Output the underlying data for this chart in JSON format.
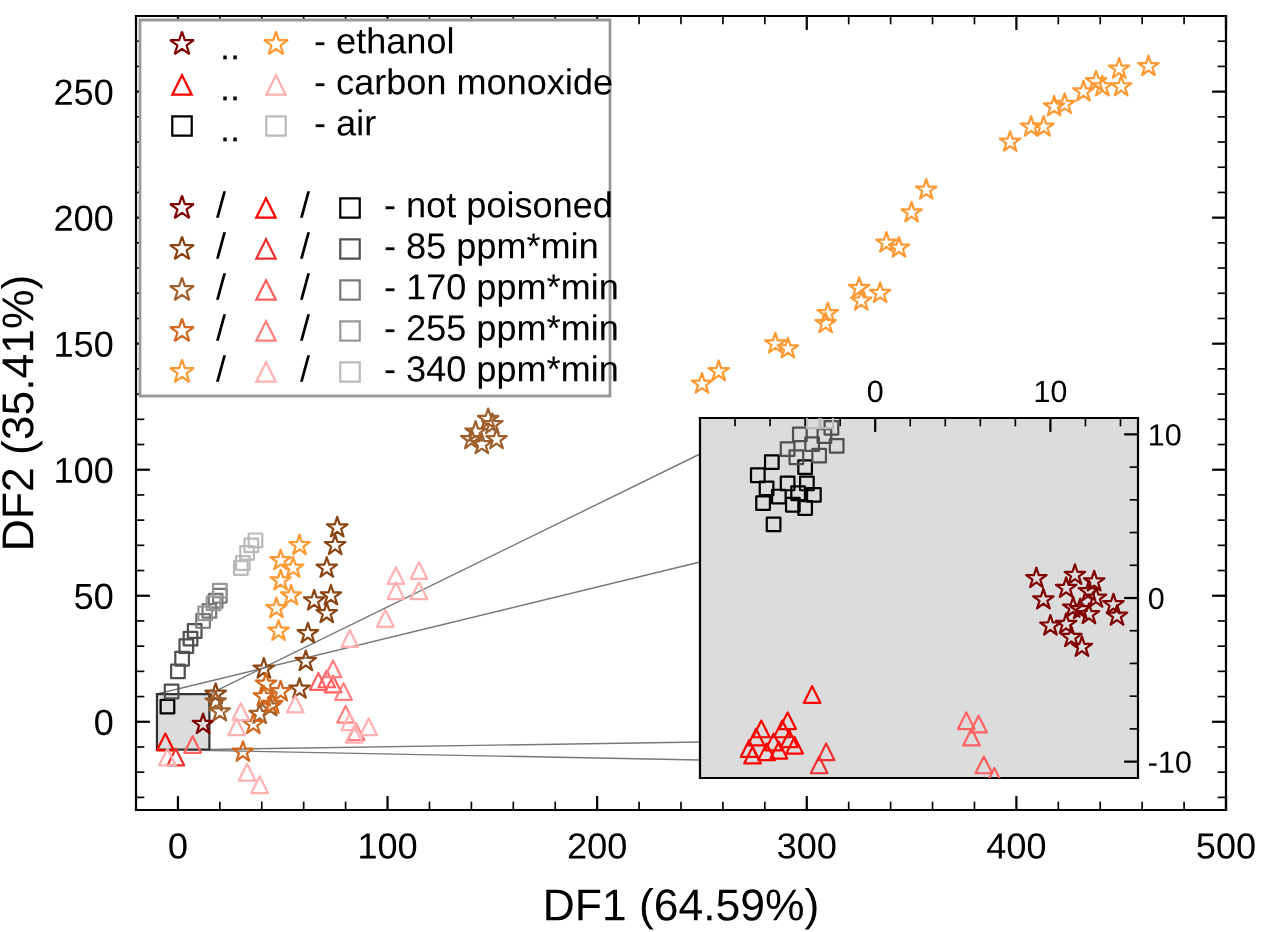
{
  "chart_data": [
    {
      "type": "scatter",
      "xlabel": "DF1 (64.59%)",
      "ylabel": "DF2 (35.41%)",
      "xlim": [
        -20,
        500
      ],
      "ylim": [
        -35,
        280
      ],
      "xticks": [
        0,
        100,
        200,
        300,
        400,
        500
      ],
      "yticks": [
        0,
        50,
        100,
        150,
        200,
        250
      ],
      "annotations": [
        "..",
        "/",
        "- ethanol",
        "- carbon monoxide",
        "- air",
        "- not poisoned",
        "- 85 ppm*min",
        "- 170 ppm*min",
        "- 255 ppm*min",
        "- 340 ppm*min"
      ],
      "series": [
        {
          "color": "#800000",
          "marker": "star",
          "x": [
            12
          ],
          "values": [
            -1
          ]
        },
        {
          "color": "#8b4513",
          "marker": "star",
          "x": [
            76,
            75,
            71,
            65,
            73,
            71,
            62,
            61,
            58,
            41,
            18
          ],
          "values": [
            77,
            70,
            61,
            48,
            50,
            43,
            35,
            24,
            13,
            21,
            11
          ]
        },
        {
          "color": "#a0602d",
          "marker": "star",
          "x": [
            18,
            20,
            39,
            44,
            142,
            150,
            145,
            152,
            140,
            148
          ],
          "values": [
            8,
            4,
            3,
            6,
            115,
            118,
            110,
            112,
            112,
            120
          ]
        },
        {
          "color": "#d2691e",
          "marker": "star",
          "x": [
            42,
            45,
            36,
            31,
            41,
            49
          ],
          "values": [
            15,
            7,
            -1,
            -12,
            10,
            12
          ]
        },
        {
          "color": "#ff9933",
          "marker": "star",
          "x": [
            58,
            49,
            55,
            49,
            54,
            47,
            48,
            250,
            258,
            285,
            291,
            310,
            309,
            325,
            326,
            335,
            338,
            344,
            350,
            357,
            397,
            407,
            413,
            418,
            423,
            432,
            438,
            441,
            449,
            450,
            463
          ],
          "values": [
            70,
            64,
            61,
            56,
            50,
            45,
            36,
            134,
            139,
            150,
            148,
            162,
            158,
            172,
            167,
            170,
            190,
            188,
            202,
            211,
            230,
            236,
            236,
            244,
            245,
            250,
            254,
            252,
            259,
            252,
            260
          ]
        },
        {
          "color": "#ff0000",
          "marker": "triangle",
          "x": [
            -6
          ],
          "values": [
            -8
          ]
        },
        {
          "color": "#f03030",
          "marker": "triangle",
          "x": [
            -1
          ],
          "values": [
            -14
          ]
        },
        {
          "color": "#ff6060",
          "marker": "triangle",
          "x": [
            7,
            71,
            74,
            67
          ],
          "values": [
            -9,
            17,
            15,
            16
          ]
        },
        {
          "color": "#ff8080",
          "marker": "triangle",
          "x": [
            74,
            79,
            80,
            85
          ],
          "values": [
            21,
            12,
            3,
            -4
          ]
        },
        {
          "color": "#ffb0b0",
          "marker": "triangle",
          "x": [
            115,
            104,
            104,
            115,
            99,
            82,
            82,
            91,
            84,
            30,
            28,
            33,
            39,
            56,
            -5
          ],
          "values": [
            60,
            58,
            52,
            52,
            41,
            33,
            0,
            -2,
            -5,
            4,
            -2,
            -20,
            -25,
            7,
            -14
          ]
        },
        {
          "color": "#000000",
          "marker": "square",
          "x": [
            -5
          ],
          "values": [
            6
          ]
        },
        {
          "color": "#505050",
          "marker": "square",
          "x": [
            -3,
            0,
            2,
            4,
            6,
            8
          ],
          "values": [
            12,
            20,
            25,
            30,
            33,
            36
          ]
        },
        {
          "color": "#7a7a7a",
          "marker": "square",
          "x": [
            12,
            15,
            18,
            20
          ],
          "values": [
            40,
            44,
            48,
            50
          ]
        },
        {
          "color": "#999999",
          "marker": "square",
          "x": [
            13,
            17,
            20
          ],
          "values": [
            43,
            47,
            52
          ]
        },
        {
          "color": "#bbbbbb",
          "marker": "square",
          "x": [
            31,
            33,
            35,
            37,
            30
          ],
          "values": [
            63,
            67,
            70,
            72,
            61
          ]
        }
      ]
    },
    {
      "type": "scatter",
      "xlim": [
        -10,
        15
      ],
      "ylim": [
        -11,
        11
      ],
      "xticks": [
        0,
        10
      ],
      "yticks": [
        -10,
        0,
        10
      ],
      "series": [
        {
          "color": "#800000",
          "marker": "star",
          "x": [
            9.2,
            9.6,
            10,
            10.9,
            10.9,
            11.4,
            11.3,
            11.7,
            11.2,
            11.8,
            12.2,
            12.5,
            12.2,
            13.6,
            13.8,
            12.6
          ],
          "values": [
            1.2,
            -0.1,
            -1.7,
            -1.6,
            0.6,
            1.4,
            -0.6,
            -0.7,
            -2.4,
            -3.0,
            0.4,
            1.0,
            -1.0,
            -0.4,
            -1.1,
            0
          ]
        },
        {
          "color": "#ff0000",
          "marker": "triangle",
          "x": [
            -7.2,
            -6.8,
            -6.2,
            -5.8,
            -5.3,
            -4.9,
            -6.5,
            -5.5,
            -4.6,
            -7.0,
            -5.0,
            -3.6
          ],
          "values": [
            -9.2,
            -8.5,
            -9.4,
            -8.8,
            -8.0,
            -8.6,
            -8.0,
            -9.3,
            -9.0,
            -9.6,
            -7.5,
            -5.9
          ]
        },
        {
          "color": "#f03030",
          "marker": "triangle",
          "x": [
            -2.8,
            -3.2
          ],
          "values": [
            -9.4,
            -10.2
          ]
        },
        {
          "color": "#ff6060",
          "marker": "triangle",
          "x": [
            5.2,
            5.9,
            5.5,
            6.2,
            6.8
          ],
          "values": [
            -7.5,
            -7.7,
            -8.5,
            -10.2,
            -10.9
          ]
        },
        {
          "color": "#000000",
          "marker": "square",
          "x": [
            -6.7,
            -5.9,
            -6.2,
            -5.5,
            -5.0,
            -4.4,
            -3.9,
            -4.0,
            -4.7,
            -3.5,
            -5.8,
            -4.0,
            -6.4
          ],
          "values": [
            7.5,
            8.3,
            6.7,
            6.2,
            7.0,
            6.4,
            7.0,
            5.5,
            5.7,
            6.3,
            4.5,
            8.0,
            5.8
          ]
        },
        {
          "color": "#505050",
          "marker": "square",
          "x": [
            -5.0,
            -4.3,
            -3.6,
            -2.9,
            -2.2,
            -3.2,
            -4.5,
            -2.5
          ],
          "values": [
            9.1,
            10.0,
            9.4,
            9.9,
            9.3,
            8.7,
            8.6,
            10.4
          ]
        },
        {
          "color": "#bbbbbb",
          "marker": "square",
          "x": [
            -3.5,
            -2.8
          ],
          "values": [
            10.8,
            10.8
          ]
        }
      ]
    }
  ]
}
